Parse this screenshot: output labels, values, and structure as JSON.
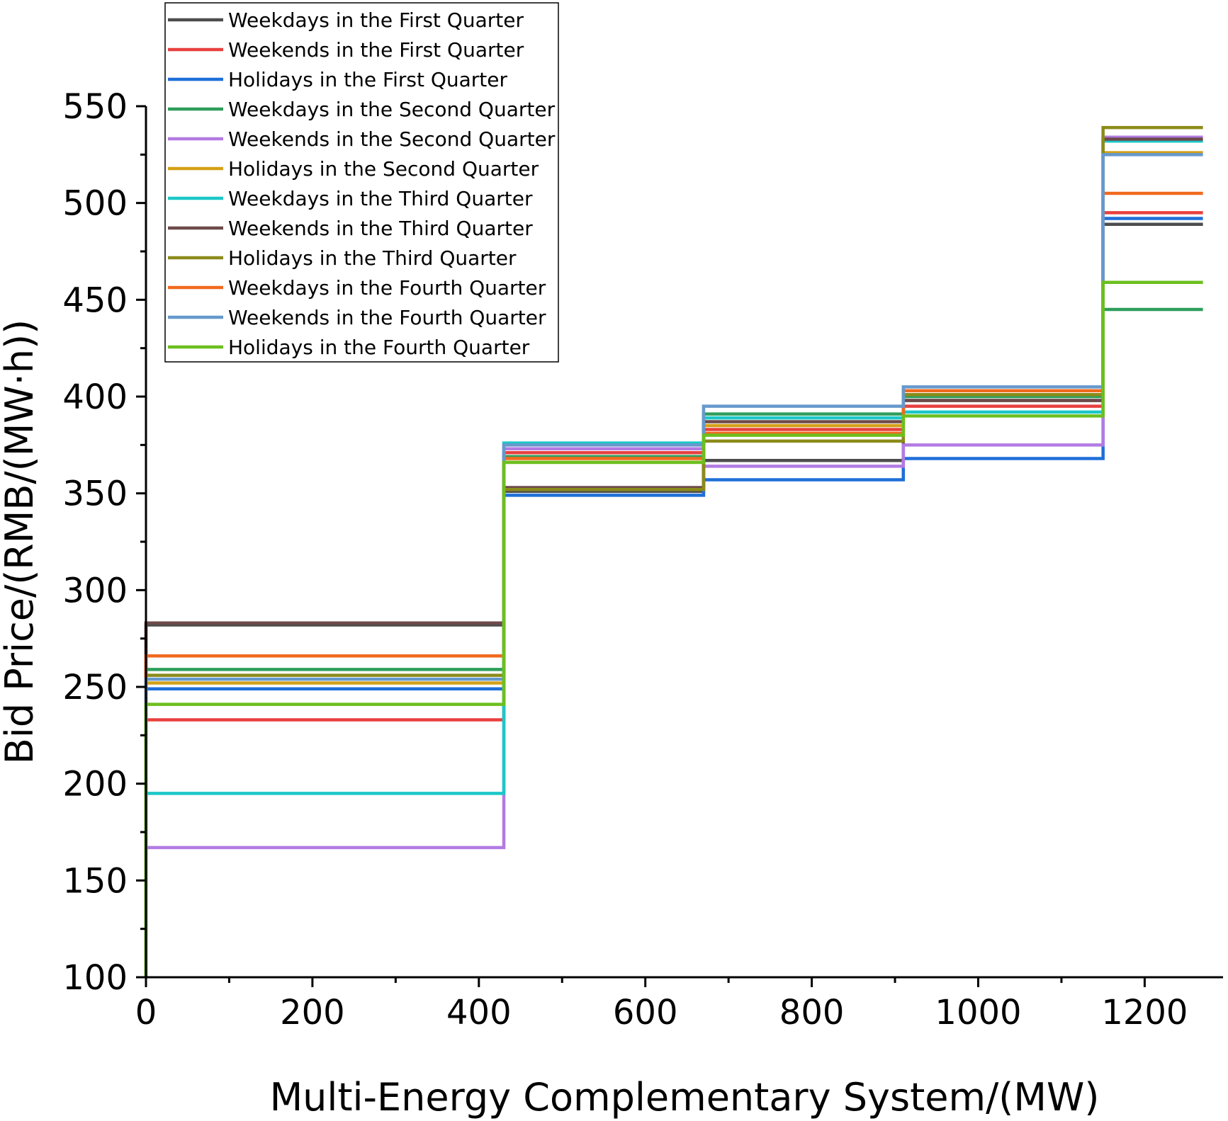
{
  "chart_data": {
    "type": "line",
    "step": true,
    "title": "",
    "xlabel": "Multi-Energy Complementary System/(MW)",
    "ylabel": "Bid Price/(RMB/(MW·h))",
    "xlim": [
      0,
      1300
    ],
    "ylim": [
      100,
      550
    ],
    "xticks": [
      0,
      200,
      400,
      600,
      800,
      1000,
      1200
    ],
    "yticks": [
      100,
      150,
      200,
      250,
      300,
      350,
      400,
      450,
      500,
      550
    ],
    "legend_position": "top-left",
    "breakpoints_mw": [
      0,
      430,
      670,
      910,
      1150,
      1270
    ],
    "series": [
      {
        "name": "Weekdays in the First Quarter",
        "color": "#4d4d4d",
        "values": [
          282,
          351,
          367,
          398,
          489
        ]
      },
      {
        "name": "Weekends in the First Quarter",
        "color": "#e8403f",
        "values": [
          233,
          371,
          383,
          395,
          495
        ]
      },
      {
        "name": "Holidays in the First Quarter",
        "color": "#1f6fd8",
        "values": [
          249,
          349,
          357,
          368,
          492
        ]
      },
      {
        "name": "Weekdays in the Second Quarter",
        "color": "#2e9e5b",
        "values": [
          259,
          369,
          391,
          400,
          445
        ]
      },
      {
        "name": "Weekends in the Second Quarter",
        "color": "#b27be3",
        "values": [
          167,
          373,
          364,
          375,
          534
        ]
      },
      {
        "name": "Holidays in the Second Quarter",
        "color": "#d4a017",
        "values": [
          252,
          366,
          385,
          403,
          526
        ]
      },
      {
        "name": "Weekdays in the Third Quarter",
        "color": "#1cc7c7",
        "values": [
          195,
          376,
          389,
          392,
          532
        ]
      },
      {
        "name": "Weekends in the Third Quarter",
        "color": "#6e4a4a",
        "values": [
          283,
          353,
          387,
          398,
          533
        ]
      },
      {
        "name": "Holidays in the Third Quarter",
        "color": "#8b8b1a",
        "values": [
          256,
          352,
          377,
          401,
          539
        ]
      },
      {
        "name": "Weekdays in the Fourth Quarter",
        "color": "#f06a1e",
        "values": [
          266,
          368,
          381,
          403,
          505
        ]
      },
      {
        "name": "Weekends in the Fourth Quarter",
        "color": "#6699cc",
        "values": [
          254,
          375,
          395,
          405,
          525
        ]
      },
      {
        "name": "Holidays in the Fourth Quarter",
        "color": "#6cbf1e",
        "values": [
          241,
          366,
          380,
          390,
          459
        ]
      }
    ]
  }
}
